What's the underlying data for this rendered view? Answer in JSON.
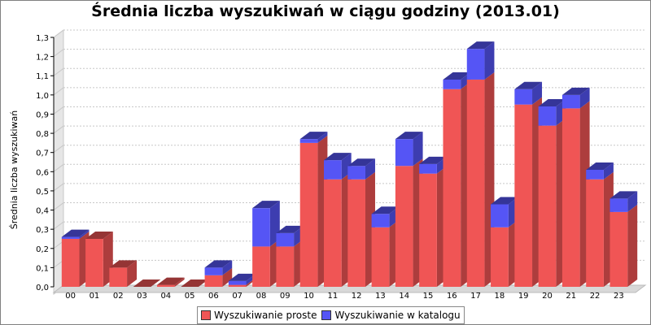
{
  "chart_data": {
    "type": "bar",
    "stacked": true,
    "title": "Średnia liczba wyszukiwań w ciągu godziny (2013.01)",
    "xlabel": "",
    "ylabel": "Średnia liczba wyszukiwań",
    "ylim": [
      0,
      1.3
    ],
    "yticks": [
      "0,0",
      "0,1",
      "0,2",
      "0,3",
      "0,4",
      "0,5",
      "0,6",
      "0,7",
      "0,8",
      "0,9",
      "1,0",
      "1,1",
      "1,2",
      "1,3"
    ],
    "grid": true,
    "legend_placement": "bottom-center",
    "categories": [
      "00",
      "01",
      "02",
      "03",
      "04",
      "05",
      "06",
      "07",
      "08",
      "09",
      "10",
      "11",
      "12",
      "13",
      "14",
      "15",
      "16",
      "17",
      "18",
      "19",
      "20",
      "21",
      "22",
      "23"
    ],
    "series": [
      {
        "name": "Wyszukiwanie proste",
        "color": "#f05555",
        "values": [
          0.25,
          0.25,
          0.1,
          0.0,
          0.01,
          0.0,
          0.06,
          0.01,
          0.21,
          0.21,
          0.75,
          0.56,
          0.56,
          0.31,
          0.63,
          0.59,
          1.03,
          1.08,
          0.31,
          0.95,
          0.84,
          0.93,
          0.56,
          0.39
        ]
      },
      {
        "name": "Wyszukiwanie w katalogu",
        "color": "#5555f5",
        "values": [
          0.01,
          0.0,
          0.0,
          0.0,
          0.0,
          0.0,
          0.04,
          0.02,
          0.2,
          0.07,
          0.02,
          0.1,
          0.07,
          0.07,
          0.14,
          0.05,
          0.05,
          0.16,
          0.12,
          0.08,
          0.1,
          0.07,
          0.05,
          0.07
        ]
      }
    ]
  }
}
